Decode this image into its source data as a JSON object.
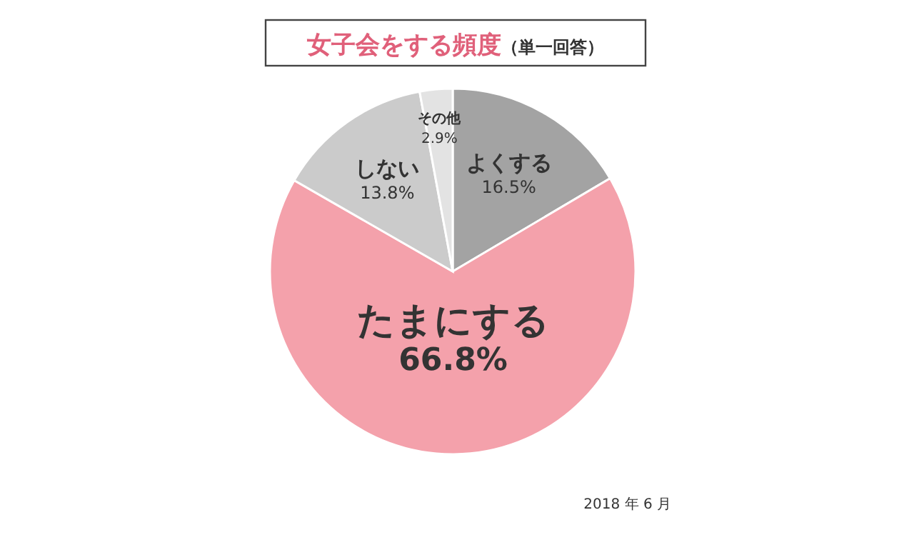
{
  "chart_data": {
    "type": "pie",
    "title": "女子会をする頻度",
    "subtitle": "（単一回答）",
    "categories": [
      "よくする",
      "たまにする",
      "しない",
      "その他"
    ],
    "values": [
      16.5,
      66.8,
      13.8,
      2.9
    ],
    "colors": [
      "#a3a3a3",
      "#f4a1ab",
      "#cbcbcb",
      "#e3e3e3"
    ],
    "value_labels": [
      "16.5%",
      "66.8%",
      "13.8%",
      "2.9%"
    ],
    "annotations": [
      "2018 年 6 月"
    ]
  }
}
